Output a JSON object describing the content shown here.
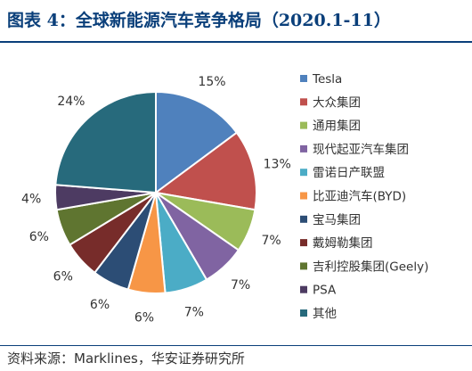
{
  "title": "图表 4：全球新能源汽车竞争格局（2020.1-11）",
  "source": "资料来源：Marklines，华安证券研究所",
  "chart_data": {
    "type": "pie",
    "title": "图表 4：全球新能源汽车竞争格局（2020.1-11）",
    "legend_position": "right",
    "slices": [
      {
        "name": "Tesla",
        "value": 15,
        "label": "15%",
        "color": "#4f81bd"
      },
      {
        "name": "大众集团",
        "value": 13,
        "label": "13%",
        "color": "#c0504d"
      },
      {
        "name": "通用集团",
        "value": 7,
        "label": "7%",
        "color": "#9bbb59"
      },
      {
        "name": "现代起亚汽车集团",
        "value": 7,
        "label": "7%",
        "color": "#8064a2"
      },
      {
        "name": "雷诺日产联盟",
        "value": 7,
        "label": "7%",
        "color": "#4bacc6"
      },
      {
        "name": "比亚迪汽车(BYD)",
        "value": 6,
        "label": "6%",
        "color": "#f79646"
      },
      {
        "name": "宝马集团",
        "value": 6,
        "label": "6%",
        "color": "#2c4d75"
      },
      {
        "name": "戴姆勒集团",
        "value": 6,
        "label": "6%",
        "color": "#772c2a"
      },
      {
        "name": "吉利控股集团(Geely)",
        "value": 6,
        "label": "6%",
        "color": "#5f7530"
      },
      {
        "name": "PSA",
        "value": 4,
        "label": "4%",
        "color": "#4d3b62"
      },
      {
        "name": "其他",
        "value": 24,
        "label": "24%",
        "color": "#276a7c"
      }
    ]
  }
}
